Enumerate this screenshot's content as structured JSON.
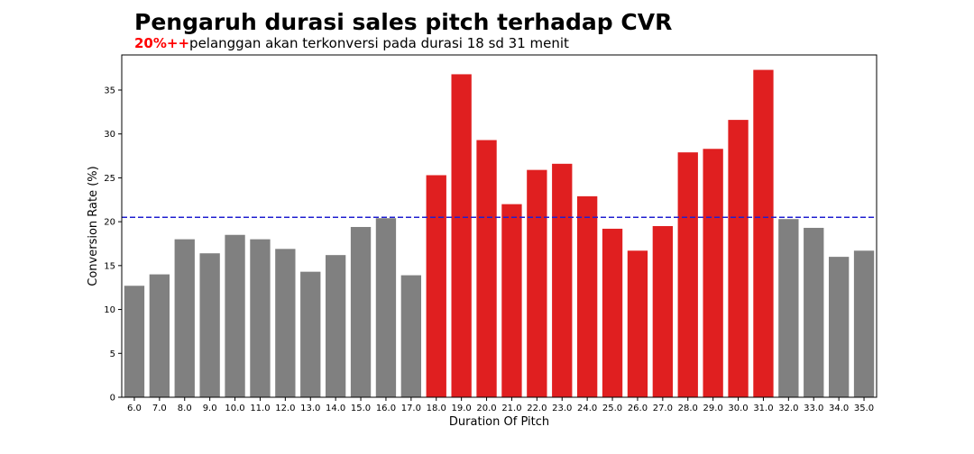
{
  "chart_data": {
    "type": "bar",
    "title": "Pengaruh durasi sales pitch terhadap CVR",
    "subtitle_highlight": "20%++",
    "subtitle_text": "pelanggan akan terkonversi pada durasi 18 sd 31 menit",
    "xlabel": "Duration Of Pitch",
    "ylabel": "Conversion Rate (%)",
    "ylim": [
      0,
      39
    ],
    "yticks": [
      0,
      5,
      10,
      15,
      20,
      25,
      30,
      35
    ],
    "categories": [
      "6.0",
      "7.0",
      "8.0",
      "9.0",
      "10.0",
      "11.0",
      "12.0",
      "13.0",
      "14.0",
      "15.0",
      "16.0",
      "17.0",
      "18.0",
      "19.0",
      "20.0",
      "21.0",
      "22.0",
      "23.0",
      "24.0",
      "25.0",
      "26.0",
      "27.0",
      "28.0",
      "29.0",
      "30.0",
      "31.0",
      "32.0",
      "33.0",
      "34.0",
      "35.0"
    ],
    "values": [
      12.7,
      14.0,
      18.0,
      16.4,
      18.5,
      18.0,
      16.9,
      14.3,
      16.2,
      19.4,
      20.4,
      13.9,
      25.3,
      36.8,
      29.3,
      22.0,
      25.9,
      26.6,
      22.9,
      19.2,
      16.7,
      19.5,
      27.9,
      28.3,
      31.6,
      37.3,
      20.3,
      19.3,
      16.0,
      16.7
    ],
    "highlight_range": [
      "18.0",
      "31.0"
    ],
    "reference_line": 20.5,
    "grid": false,
    "colors": {
      "highlight": "#e01f20",
      "normal": "#808080",
      "reference_line": "#1f1fd0"
    }
  }
}
